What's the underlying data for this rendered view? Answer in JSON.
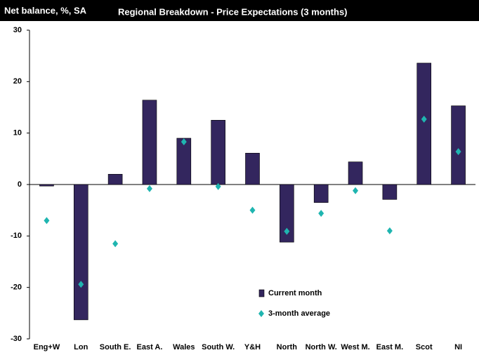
{
  "chart_data": {
    "type": "bar",
    "ylabel": "Net balance, %, SA",
    "title": "Regional Breakdown - Price Expectations (3 months)",
    "categories": [
      "Eng+W",
      "Lon",
      "South E.",
      "East A.",
      "Wales",
      "South W.",
      "Y&H",
      "North",
      "North W.",
      "West M.",
      "East M.",
      "Scot",
      "NI"
    ],
    "series": [
      {
        "name": "Current month",
        "color": "#33265e",
        "kind": "bar",
        "values": [
          -0.3,
          -26.3,
          2.0,
          16.4,
          9.0,
          12.5,
          6.1,
          -11.2,
          -3.5,
          4.4,
          -2.9,
          23.6,
          15.3
        ]
      },
      {
        "name": "3-month average",
        "color": "#1fb5b0",
        "kind": "marker",
        "values": [
          -7.0,
          -19.4,
          -11.5,
          -0.8,
          8.3,
          -0.4,
          -5.0,
          -9.1,
          -5.6,
          -1.2,
          -9.0,
          12.7,
          6.4
        ]
      }
    ],
    "ylim": [
      -30,
      30
    ],
    "yticks": [
      -30,
      -20,
      -10,
      0,
      10,
      20,
      30
    ]
  }
}
